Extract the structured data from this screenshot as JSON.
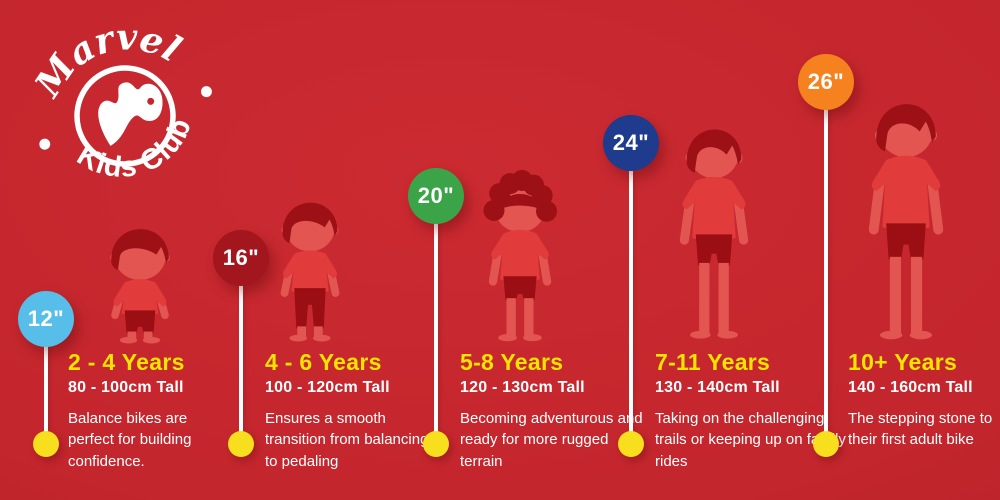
{
  "logo": {
    "line1": "Marvel",
    "line2": "Kids Club",
    "emblem": "abstract-m-monogram"
  },
  "colors": {
    "background": "#C4262D",
    "heading_yellow": "#F5E400",
    "dot_yellow": "#F8DF1E",
    "text_white": "#FFFFFF",
    "figure": {
      "hair": "#9C1016",
      "skin": "#E25551",
      "shirt": "#E13B3B",
      "shorts": "#9B0E14"
    }
  },
  "columns": [
    {
      "wheel": "12\"",
      "color": "#56BEE8",
      "age": "2 - 4 Years",
      "height": "80 - 100cm Tall",
      "desc": "Balance bikes are perfect for building confidence.",
      "figure_alt": "toddler-boy"
    },
    {
      "wheel": "16\"",
      "color": "#A3161E",
      "age": "4 - 6 Years",
      "height": "100 - 120cm Tall",
      "desc": "Ensures a smooth transition from balancing to pedaling",
      "figure_alt": "young-boy"
    },
    {
      "wheel": "20\"",
      "color": "#3BA449",
      "age": "5-8 Years",
      "height": "120 - 130cm Tall",
      "desc": "Becoming adventurous and ready for more rugged terrain",
      "figure_alt": "curly-haired-boy"
    },
    {
      "wheel": "24\"",
      "color": "#1E3B8D",
      "age": "7-11 Years",
      "height": "130 - 140cm Tall",
      "desc": "Taking on the challenging trails or keeping up on family rides",
      "figure_alt": "older-boy"
    },
    {
      "wheel": "26\"",
      "color": "#F5821F",
      "age": "10+ Years",
      "height": "140 - 160cm Tall",
      "desc": "The stepping stone to their first adult bike",
      "figure_alt": "teen-boy"
    }
  ]
}
